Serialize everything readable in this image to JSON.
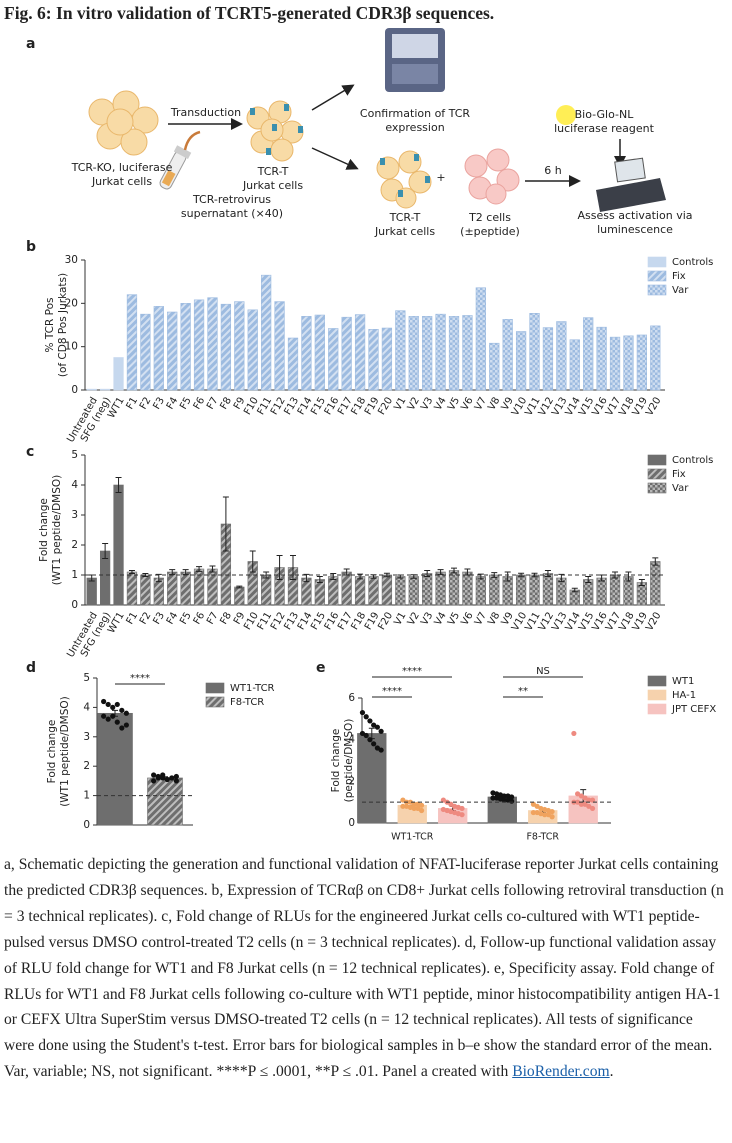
{
  "figure_title": "Fig. 6: In vitro validation of TCRT5-generated CDR3β sequences.",
  "panel_labels": [
    "a",
    "b",
    "c",
    "d",
    "e"
  ],
  "schematic": {
    "transduction": "Transduction",
    "ko_cells": [
      "TCR-KO, luciferase",
      "Jurkat cells"
    ],
    "tcrt_cells": [
      "TCR-T",
      "Jurkat cells"
    ],
    "retrovirus": [
      "TCR-retrovirus",
      "supernatant (×40)"
    ],
    "confirmation": [
      "Confirmation of TCR",
      "expression"
    ],
    "reagent": [
      "Bio-Glo-NL",
      "luciferase reagent"
    ],
    "tcrt_cells_2": [
      "TCR-T",
      "Jurkat cells"
    ],
    "plus": "+",
    "t2_cells": [
      "T2 cells",
      "(±peptide)"
    ],
    "time": "6 h",
    "assess": [
      "Assess activation via",
      "luminescence"
    ]
  },
  "chart_data": [
    {
      "type": "bar",
      "barmode": "overlay",
      "ylabel": [
        "% TCR Pos",
        "(of CD8 Pos Jurkats)"
      ],
      "categories": [
        "Untreated",
        "SFG (neg)",
        "WT1",
        "F1",
        "F2",
        "F3",
        "F4",
        "F5",
        "F6",
        "F7",
        "F8",
        "F9",
        "F10",
        "F11",
        "F12",
        "F13",
        "F14",
        "F15",
        "F16",
        "F17",
        "F18",
        "F19",
        "F20",
        "V1",
        "V2",
        "V3",
        "V4",
        "V5",
        "V6",
        "V7",
        "V8",
        "V9",
        "V10",
        "V11",
        "V12",
        "V13",
        "V14",
        "V15",
        "V16",
        "V17",
        "V18",
        "V19",
        "V20"
      ],
      "ylim": [
        0,
        30
      ],
      "yticks": [
        0,
        10,
        20,
        30
      ],
      "legend": "top-right",
      "series": [
        {
          "name": "Controls",
          "color": "#c6d8ee",
          "pattern": "solid",
          "values": [
            0.2,
            0.2,
            7.5,
            null,
            null,
            null,
            null,
            null,
            null,
            null,
            null,
            null,
            null,
            null,
            null,
            null,
            null,
            null,
            null,
            null,
            null,
            null,
            null,
            null,
            null,
            null,
            null,
            null,
            null,
            null,
            null,
            null,
            null,
            null,
            null,
            null,
            null,
            null,
            null,
            null,
            null,
            null,
            null
          ]
        },
        {
          "name": "Fix",
          "color": "#9dbbe0",
          "pattern": "hatch",
          "values": [
            null,
            null,
            null,
            22,
            17.5,
            19.3,
            18,
            20,
            20.8,
            21.3,
            19.8,
            20.4,
            18.5,
            26.5,
            20.4,
            12,
            17,
            17.3,
            14.2,
            16.8,
            17.4,
            14,
            14.3,
            null,
            null,
            null,
            null,
            null,
            null,
            null,
            null,
            null,
            null,
            null,
            null,
            null,
            null,
            null,
            null,
            null,
            null,
            null,
            null
          ]
        },
        {
          "name": "Var",
          "color": "#9dbbe0",
          "pattern": "check",
          "values": [
            null,
            null,
            null,
            null,
            null,
            null,
            null,
            null,
            null,
            null,
            null,
            null,
            null,
            null,
            null,
            null,
            null,
            null,
            null,
            null,
            null,
            null,
            null,
            18.3,
            17,
            17,
            17.5,
            17,
            17.2,
            23.6,
            10.8,
            16.3,
            13.5,
            17.7,
            14.4,
            15.8,
            11.6,
            16.7,
            14.5,
            12.2,
            12.5,
            12.7,
            14.8
          ]
        }
      ]
    },
    {
      "type": "bar",
      "barmode": "overlay",
      "ylabel": [
        "Fold change",
        "(WT1 peptide/DMSO)"
      ],
      "categories": [
        "Untreated",
        "SFG (neg)",
        "WT1",
        "F1",
        "F2",
        "F3",
        "F4",
        "F5",
        "F6",
        "F7",
        "F8",
        "F9",
        "F10",
        "F11",
        "F12",
        "F13",
        "F14",
        "F15",
        "F16",
        "F17",
        "F18",
        "F19",
        "F20",
        "V1",
        "V2",
        "V3",
        "V4",
        "V5",
        "V6",
        "V7",
        "V8",
        "V9",
        "V10",
        "V11",
        "V12",
        "V13",
        "V14",
        "V15",
        "V16",
        "V17",
        "V18",
        "V19",
        "V20"
      ],
      "ylim": [
        0,
        5
      ],
      "yticks": [
        0,
        1,
        2,
        3,
        4,
        5
      ],
      "refline": 1,
      "legend": "top-right",
      "series": [
        {
          "name": "Controls",
          "color": "#6e6e6e",
          "pattern": "solid",
          "values": [
            0.9,
            1.8,
            4.0,
            null,
            null,
            null,
            null,
            null,
            null,
            null,
            null,
            null,
            null,
            null,
            null,
            null,
            null,
            null,
            null,
            null,
            null,
            null,
            null,
            null,
            null,
            null,
            null,
            null,
            null,
            null,
            null,
            null,
            null,
            null,
            null,
            null,
            null,
            null,
            null,
            null,
            null,
            null,
            null
          ],
          "errors": [
            0.1,
            0.25,
            0.25,
            null,
            null,
            null,
            null,
            null,
            null,
            null,
            null,
            null,
            null,
            null,
            null,
            null,
            null,
            null,
            null,
            null,
            null,
            null,
            null,
            null,
            null,
            null,
            null,
            null,
            null,
            null,
            null,
            null,
            null,
            null,
            null,
            null,
            null,
            null,
            null,
            null,
            null,
            null,
            null
          ]
        },
        {
          "name": "Fix",
          "color": "#6e6e6e",
          "pattern": "hatch",
          "values": [
            null,
            null,
            null,
            1.1,
            1.0,
            0.9,
            1.1,
            1.1,
            1.2,
            1.2,
            2.7,
            0.6,
            1.45,
            1.0,
            1.25,
            1.25,
            0.9,
            0.85,
            0.95,
            1.1,
            0.95,
            0.95,
            1.0,
            null,
            null,
            null,
            null,
            null,
            null,
            null,
            null,
            null,
            null,
            null,
            null,
            null,
            null,
            null,
            null,
            null,
            null,
            null,
            null
          ],
          "errors": [
            null,
            null,
            null,
            0.05,
            0.05,
            0.12,
            0.08,
            0.08,
            0.08,
            0.1,
            0.9,
            0.03,
            0.35,
            0.1,
            0.4,
            0.4,
            0.12,
            0.1,
            0.1,
            0.1,
            0.08,
            0.06,
            0.06,
            null,
            null,
            null,
            null,
            null,
            null,
            null,
            null,
            null,
            null,
            null,
            null,
            null,
            null,
            null,
            null,
            null,
            null,
            null,
            null
          ]
        },
        {
          "name": "Var",
          "color": "#6e6e6e",
          "pattern": "check",
          "values": [
            null,
            null,
            null,
            null,
            null,
            null,
            null,
            null,
            null,
            null,
            null,
            null,
            null,
            null,
            null,
            null,
            null,
            null,
            null,
            null,
            null,
            null,
            null,
            0.95,
            0.95,
            1.05,
            1.1,
            1.15,
            1.1,
            0.95,
            1.0,
            0.95,
            1.0,
            1.0,
            1.05,
            0.9,
            0.5,
            0.85,
            0.9,
            1.0,
            0.95,
            0.75,
            1.45
          ],
          "errors": [
            null,
            null,
            null,
            null,
            null,
            null,
            null,
            null,
            null,
            null,
            null,
            null,
            null,
            null,
            null,
            null,
            null,
            null,
            null,
            null,
            null,
            null,
            null,
            0.05,
            0.06,
            0.1,
            0.08,
            0.08,
            0.1,
            0.08,
            0.08,
            0.15,
            0.06,
            0.06,
            0.1,
            0.12,
            0.06,
            0.1,
            0.1,
            0.1,
            0.15,
            0.1,
            0.12
          ]
        }
      ]
    },
    {
      "type": "bar",
      "barmode": "overlay",
      "ylabel": [
        "Fold change",
        "(WT1 peptide/DMSO)"
      ],
      "categories": [
        null,
        null
      ],
      "ylim": [
        0,
        5
      ],
      "yticks": [
        0,
        1,
        2,
        3,
        4,
        5
      ],
      "refline": 1,
      "legend": "top-right",
      "annotations": [
        "****"
      ],
      "series": [
        {
          "name": "WT1-TCR",
          "color": "#6e6e6e",
          "pattern": "solid",
          "point_color": "#111111",
          "values": [
            3.8,
            null
          ],
          "errors": [
            0.1,
            null
          ],
          "points": [
            [
              4.2,
              4.1,
              4.0,
              4.1,
              3.9,
              3.8,
              3.7,
              3.6,
              3.7,
              3.5,
              3.3,
              3.4
            ],
            null
          ]
        },
        {
          "name": "F8-TCR",
          "color": "#6e6e6e",
          "pattern": "hatch",
          "point_color": "#111111",
          "values": [
            null,
            1.6
          ],
          "errors": [
            null,
            0.04
          ],
          "points": [
            null,
            [
              1.7,
              1.65,
              1.6,
              1.55,
              1.6,
              1.65,
              1.5,
              1.6,
              1.7,
              1.55,
              1.6,
              1.5
            ]
          ]
        }
      ]
    },
    {
      "type": "bar",
      "barmode": "grouped",
      "ylabel": [
        "Fold change",
        "(peptide/DMSO)"
      ],
      "categories": [
        "WT1-TCR",
        "F8-TCR"
      ],
      "ylim": [
        0,
        6
      ],
      "yticks": [
        0,
        2,
        4,
        6
      ],
      "refline": 1,
      "legend": "top-right",
      "annotations": [
        "****",
        "****",
        "NS",
        "**"
      ],
      "series": [
        {
          "name": "WT1",
          "color": "#6e6e6e",
          "pattern": "solid",
          "point_color": "#111111",
          "values": [
            4.3,
            1.25
          ],
          "errors": [
            0.25,
            0.06
          ],
          "points": [
            [
              5.3,
              5.1,
              4.9,
              4.7,
              4.6,
              4.4,
              4.3,
              4.2,
              4.0,
              3.8,
              3.6,
              3.5
            ],
            [
              1.45,
              1.4,
              1.35,
              1.3,
              1.3,
              1.25,
              1.2,
              1.2,
              1.15,
              1.1,
              1.1,
              1.05
            ]
          ]
        },
        {
          "name": "HA-1",
          "color": "#f6d2ad",
          "pattern": "solid",
          "point_color": "#f0a35e",
          "values": [
            0.85,
            0.6
          ],
          "errors": [
            0.07,
            0.1
          ],
          "points": [
            [
              1.1,
              1.0,
              1.0,
              0.9,
              0.9,
              0.85,
              0.8,
              0.8,
              0.75,
              0.7,
              0.7,
              0.6
            ],
            [
              0.9,
              0.8,
              0.7,
              0.65,
              0.6,
              0.55,
              0.5,
              0.5,
              0.45,
              0.4,
              0.4,
              0.3
            ]
          ]
        },
        {
          "name": "JPT CEFX",
          "color": "#f6c3c0",
          "pattern": "solid",
          "point_color": "#ee8a80",
          "values": [
            0.7,
            1.3
          ],
          "errors": [
            0.1,
            0.3
          ],
          "points": [
            [
              1.1,
              1.0,
              0.9,
              0.8,
              0.75,
              0.7,
              0.65,
              0.6,
              0.55,
              0.5,
              0.45,
              0.4
            ],
            [
              4.3,
              1.4,
              1.3,
              1.2,
              1.1,
              1.1,
              1.0,
              1.0,
              0.9,
              0.9,
              0.8,
              0.7
            ]
          ]
        }
      ]
    }
  ],
  "caption": {
    "text": "a, Schematic depicting the generation and functional validation of NFAT-luciferase reporter Jurkat cells containing the predicted CDR3β sequences. b, Expression of TCRαβ on CD8+ Jurkat cells following retroviral transduction (n = 3 technical replicates). c, Fold change of RLUs for the engineered Jurkat cells co-cultured with WT1 peptide-pulsed versus DMSO control-treated T2 cells (n = 3 technical replicates). d, Follow-up functional validation assay of RLU fold change for WT1 and F8 Jurkat cells (n = 12 technical replicates). e, Specificity assay. Fold change of RLUs for WT1 and F8 Jurkat cells following co-culture with WT1 peptide, minor histocompatibility antigen HA-1 or CEFX Ultra SuperStim versus DMSO-treated T2 cells (n = 12 technical replicates). All tests of significance were done using the Student's t-test. Error bars for biological samples in b–e show the standard error of the mean. Var, variable; NS, not significant. ****P ≤ .0001, **P ≤ .01. Panel a created with ",
    "link": "BioRender.com",
    "end": "."
  }
}
